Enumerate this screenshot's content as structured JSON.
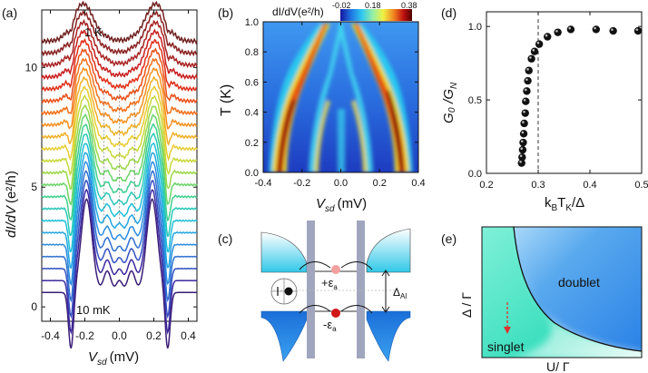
{
  "figure": {
    "panels": {
      "a": {
        "label": "(a)",
        "ylabel_main": "dI/dV",
        "ylabel_unit": "(e²/h)",
        "xlabel_main": "V",
        "xlabel_sub": "sd",
        "xlabel_unit": "(mV)",
        "top_label": "1 K",
        "bottom_label": "10 mK"
      },
      "b": {
        "label": "(b)",
        "colorbar_title": "dI/dV(e²/h)",
        "colorbar_ticks": [
          "-0.02",
          "0.18",
          "0.38"
        ],
        "ylabel": "T (K)",
        "xlabel_main": "V",
        "xlabel_sub": "sd",
        "xlabel_unit": "(mV)"
      },
      "c": {
        "label": "(c)",
        "plus_energy": "+ε",
        "minus_energy": "-ε",
        "energy_sub": "a",
        "gap_label": "Δ",
        "gap_sub": "Al"
      },
      "d": {
        "label": "(d)",
        "ylabel": "G₀ /G",
        "ylabel_sub": "N",
        "xlabel": "kBTK/Δ",
        "xlabel_parts": [
          "k",
          "B",
          "T",
          "K",
          "/Δ"
        ]
      },
      "e": {
        "label": "(e)",
        "ylabel": "Δ / Γ",
        "xlabel": "U/ Γ",
        "region_doublet": "doublet",
        "region_singlet": "singlet"
      }
    },
    "colors": {
      "curve_top": "#7a1f1f",
      "curve_bottom": "#3c1f7a",
      "map_low": "#1f3fbf",
      "map_high": "#7a0000",
      "doublet": "#2f86e6",
      "singlet": "#40e0c0",
      "cbar": [
        "#1515a0",
        "#1f6fe0",
        "#30c8f0",
        "#9af0a0",
        "#f0f040",
        "#f08020",
        "#c01010",
        "#500000"
      ]
    }
  },
  "chart_data": [
    {
      "type": "line",
      "panel": "a",
      "xlabel": "Vsd (mV)",
      "ylabel": "dI/dV (e2/h)",
      "xlim": [
        -0.45,
        0.45
      ],
      "ylim": [
        -0.6,
        12.4
      ],
      "x_ticks": [
        -0.4,
        -0.2,
        0.0,
        0.2,
        0.4
      ],
      "x_tick_labels": [
        "-0.4",
        "-0.2",
        "0.0",
        "0.2",
        "0.4"
      ],
      "y_ticks": [
        0,
        5,
        10
      ],
      "y_tick_labels": [
        "0",
        "5",
        "10"
      ],
      "n_curves": 22,
      "offset_step": 0.5,
      "note": "curves offset vertically; temperature rises from 10 mK (bottom) to 1 K (top)"
    },
    {
      "type": "heatmap",
      "panel": "b",
      "xlabel": "Vsd (mV)",
      "ylabel": "T (K)",
      "xlim": [
        -0.4,
        0.4
      ],
      "ylim": [
        0.0,
        1.0
      ],
      "x_ticks": [
        -0.4,
        -0.2,
        0.0,
        0.2,
        0.4
      ],
      "x_tick_labels": [
        "-0.4",
        "-0.2",
        "0.0",
        "0.2",
        "0.4"
      ],
      "y_ticks": [
        0.0,
        0.2,
        0.4,
        0.6,
        0.8,
        1.0
      ],
      "y_tick_labels": [
        "0.0",
        "0.2",
        "0.4",
        "0.6",
        "0.8",
        "1.0"
      ],
      "zlim": [
        -0.02,
        0.38
      ]
    },
    {
      "type": "scatter",
      "panel": "d",
      "xlabel": "kBTK/Δ",
      "ylabel": "G0/GN",
      "xlim": [
        0.2,
        0.5
      ],
      "ylim": [
        0.0,
        1.1
      ],
      "x_ticks": [
        0.2,
        0.3,
        0.4,
        0.5
      ],
      "x_tick_labels": [
        "0.2",
        "0.3",
        "0.4",
        "0.5"
      ],
      "y_ticks": [
        0.0,
        0.5,
        1.0
      ],
      "y_tick_labels": [
        "0.0",
        "0.5",
        "1.0"
      ],
      "dashed_vline_x": 0.3,
      "points": [
        {
          "x": 0.268,
          "y": 0.07
        },
        {
          "x": 0.269,
          "y": 0.11
        },
        {
          "x": 0.27,
          "y": 0.16
        },
        {
          "x": 0.271,
          "y": 0.21
        },
        {
          "x": 0.272,
          "y": 0.27
        },
        {
          "x": 0.273,
          "y": 0.34
        },
        {
          "x": 0.275,
          "y": 0.41
        },
        {
          "x": 0.276,
          "y": 0.49
        },
        {
          "x": 0.278,
          "y": 0.56
        },
        {
          "x": 0.28,
          "y": 0.63
        },
        {
          "x": 0.282,
          "y": 0.7
        },
        {
          "x": 0.287,
          "y": 0.78
        },
        {
          "x": 0.293,
          "y": 0.83
        },
        {
          "x": 0.302,
          "y": 0.88
        },
        {
          "x": 0.318,
          "y": 0.93
        },
        {
          "x": 0.338,
          "y": 0.96
        },
        {
          "x": 0.363,
          "y": 0.98
        },
        {
          "x": 0.412,
          "y": 0.98
        },
        {
          "x": 0.445,
          "y": 0.97
        },
        {
          "x": 0.493,
          "y": 0.97
        }
      ]
    }
  ]
}
